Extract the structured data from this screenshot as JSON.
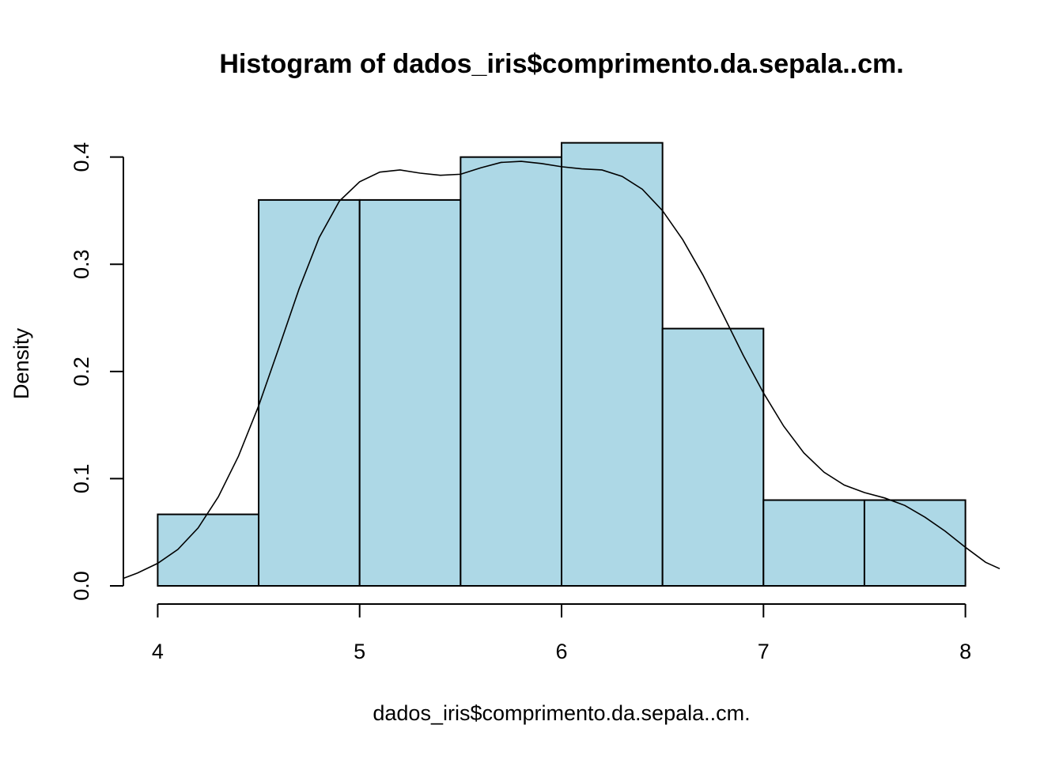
{
  "chart_data": {
    "type": "bar",
    "title": "Histogram of dados_iris$comprimento.da.sepala..cm.",
    "xlabel": "dados_iris$comprimento.da.sepala..cm.",
    "ylabel": "Density",
    "xlim": [
      3.83,
      8.17
    ],
    "ylim": [
      0,
      0.43
    ],
    "bins": [
      {
        "from": 4.0,
        "to": 4.5,
        "density": 0.0667
      },
      {
        "from": 4.5,
        "to": 5.0,
        "density": 0.36
      },
      {
        "from": 5.0,
        "to": 5.5,
        "density": 0.36
      },
      {
        "from": 5.5,
        "to": 6.0,
        "density": 0.4
      },
      {
        "from": 6.0,
        "to": 6.5,
        "density": 0.4133
      },
      {
        "from": 6.5,
        "to": 7.0,
        "density": 0.24
      },
      {
        "from": 7.0,
        "to": 7.5,
        "density": 0.08
      },
      {
        "from": 7.5,
        "to": 8.0,
        "density": 0.08
      }
    ],
    "bar_color": "#ADD8E6",
    "x_ticks": [
      "4",
      "5",
      "6",
      "7",
      "8"
    ],
    "y_ticks": [
      "0.0",
      "0.1",
      "0.2",
      "0.3",
      "0.4"
    ],
    "density_curve": {
      "x": [
        3.83,
        3.9,
        4.0,
        4.1,
        4.2,
        4.3,
        4.4,
        4.5,
        4.6,
        4.7,
        4.8,
        4.9,
        5.0,
        5.1,
        5.2,
        5.3,
        5.4,
        5.5,
        5.6,
        5.7,
        5.8,
        5.9,
        6.0,
        6.1,
        6.2,
        6.3,
        6.4,
        6.5,
        6.6,
        6.7,
        6.8,
        6.9,
        7.0,
        7.1,
        7.2,
        7.3,
        7.4,
        7.5,
        7.6,
        7.7,
        7.8,
        7.9,
        8.0,
        8.1,
        8.17
      ],
      "y": [
        0.007,
        0.012,
        0.021,
        0.034,
        0.054,
        0.083,
        0.121,
        0.168,
        0.222,
        0.277,
        0.325,
        0.359,
        0.377,
        0.386,
        0.388,
        0.385,
        0.383,
        0.384,
        0.39,
        0.395,
        0.396,
        0.394,
        0.391,
        0.389,
        0.388,
        0.382,
        0.37,
        0.35,
        0.323,
        0.29,
        0.253,
        0.215,
        0.18,
        0.149,
        0.124,
        0.106,
        0.094,
        0.087,
        0.082,
        0.075,
        0.064,
        0.051,
        0.036,
        0.022,
        0.016
      ]
    }
  }
}
